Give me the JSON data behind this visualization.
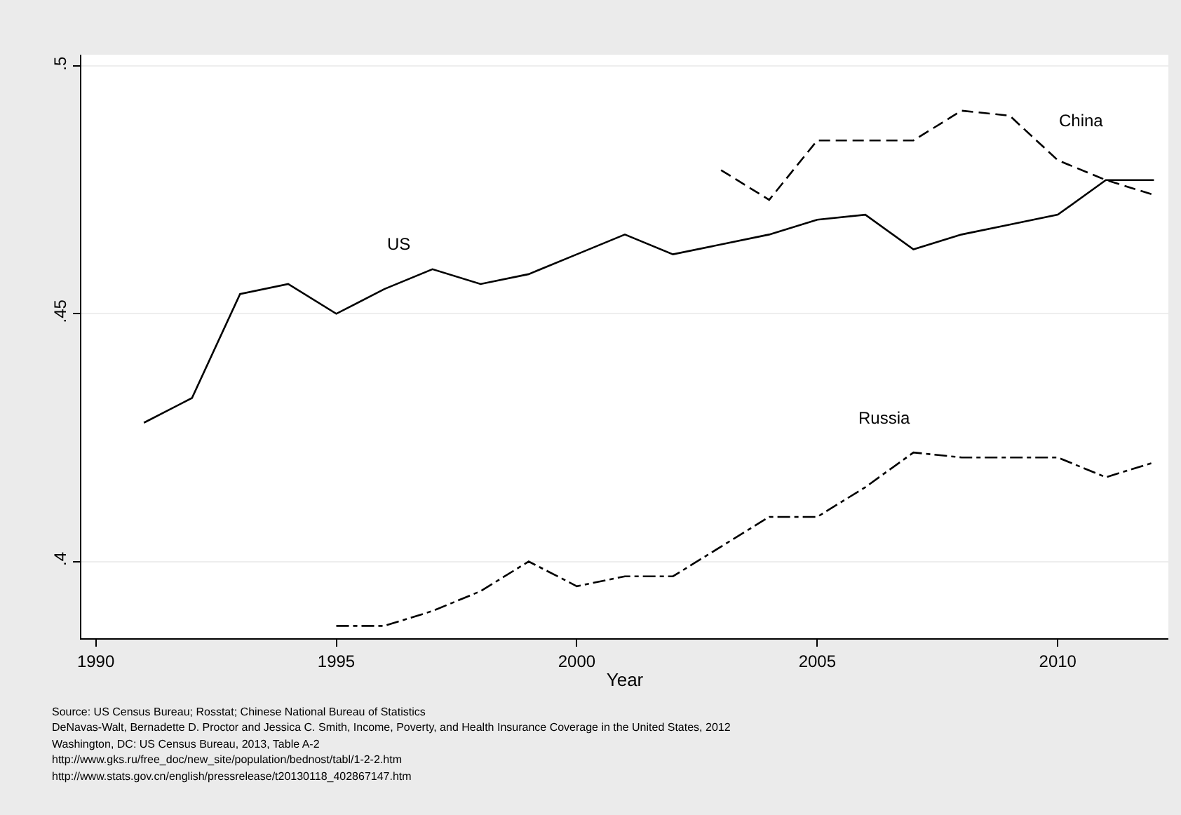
{
  "chart_data": {
    "type": "line",
    "xlabel": "Year",
    "x": [
      1991,
      1992,
      1993,
      1994,
      1995,
      1996,
      1997,
      1998,
      1999,
      2000,
      2001,
      2002,
      2003,
      2004,
      2005,
      2006,
      2007,
      2008,
      2009,
      2010,
      2011,
      2012
    ],
    "series": [
      {
        "name": "US",
        "color": "#000000",
        "line_style": "solid",
        "values": [
          0.428,
          0.433,
          0.454,
          0.456,
          0.45,
          0.455,
          0.459,
          0.456,
          0.458,
          0.462,
          0.466,
          0.462,
          0.464,
          0.466,
          0.469,
          0.47,
          0.463,
          0.466,
          0.468,
          0.47,
          0.477,
          0.477
        ]
      },
      {
        "name": "China",
        "color": "#000000",
        "line_style": "dashed",
        "x": [
          2003,
          2004,
          2005,
          2006,
          2007,
          2008,
          2009,
          2010,
          2011,
          2012
        ],
        "values": [
          0.479,
          0.473,
          0.485,
          0.485,
          0.485,
          0.491,
          0.49,
          0.481,
          0.477,
          0.474
        ]
      },
      {
        "name": "Russia",
        "color": "#000000",
        "line_style": "dashdot",
        "x": [
          1995,
          1996,
          1997,
          1998,
          1999,
          2000,
          2001,
          2002,
          2003,
          2004,
          2005,
          2006,
          2007,
          2008,
          2009,
          2010,
          2011,
          2012
        ],
        "values": [
          0.387,
          0.387,
          0.39,
          0.394,
          0.4,
          0.395,
          0.397,
          0.397,
          0.403,
          0.409,
          0.409,
          0.415,
          0.422,
          0.421,
          0.421,
          0.421,
          0.417,
          0.42
        ]
      }
    ],
    "xlim": [
      1989.7,
      2012.3
    ],
    "xticks": [
      1990,
      1995,
      2000,
      2005,
      2010
    ],
    "ylim": [
      0.3845,
      0.5023
    ],
    "yticks": [
      {
        "value": 0.4,
        "label": ".4"
      },
      {
        "value": 0.45,
        "label": ".45"
      },
      {
        "value": 0.5,
        "label": ".5"
      }
    ],
    "grid": "y",
    "legend": false,
    "marker": "none",
    "annotations": [
      "Source: US Census Bureau; Rosstat; Chinese National Bureau of Statistics",
      "DeNavas-Walt, Bernadette D. Proctor and Jessica C. Smith, Income, Poverty, and Health Insurance Coverage in the United States, 2012",
      "Washington, DC: US Census Bureau, 2013, Table A-2",
      "http://www.gks.ru/free_doc/new_site/population/bednost/tabl/1-2-2.htm",
      "http://www.stats.gov.cn/english/pressrelease/t20130118_402867147.htm"
    ]
  }
}
